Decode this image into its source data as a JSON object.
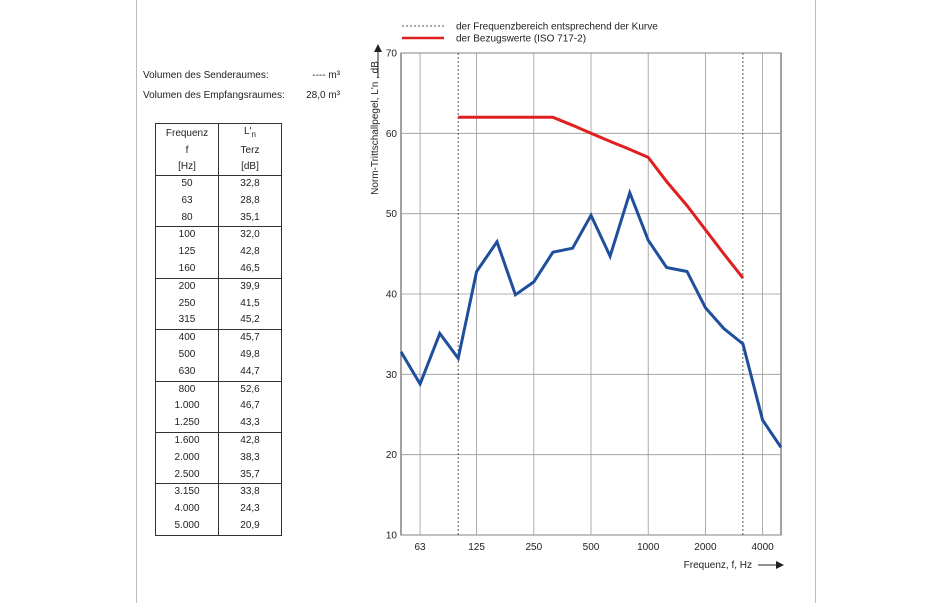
{
  "volumes": [
    {
      "label": "Volumen des Senderaumes:",
      "value": "---- m³"
    },
    {
      "label": "Volumen des Empfangsraumes:",
      "value": "28,0  m³"
    }
  ],
  "table": {
    "header_col1": [
      "Frequenz",
      "f",
      "[Hz]"
    ],
    "header_col2": [
      "L'n",
      "Terz",
      "[dB]"
    ],
    "rows": [
      [
        "50",
        "32,8"
      ],
      [
        "63",
        "28,8"
      ],
      [
        "80",
        "35,1"
      ],
      [
        "100",
        "32,0"
      ],
      [
        "125",
        "42,8"
      ],
      [
        "160",
        "46,5"
      ],
      [
        "200",
        "39,9"
      ],
      [
        "250",
        "41,5"
      ],
      [
        "315",
        "45,2"
      ],
      [
        "400",
        "45,7"
      ],
      [
        "500",
        "49,8"
      ],
      [
        "630",
        "44,7"
      ],
      [
        "800",
        "52,6"
      ],
      [
        "1.000",
        "46,7"
      ],
      [
        "1.250",
        "43,3"
      ],
      [
        "1.600",
        "42,8"
      ],
      [
        "2.000",
        "38,3"
      ],
      [
        "2.500",
        "35,7"
      ],
      [
        "3.150",
        "33,8"
      ],
      [
        "4.000",
        "24,3"
      ],
      [
        "5.000",
        "20,9"
      ]
    ]
  },
  "legend": {
    "dotted": "der Frequenzbereich entsprechend der Kurve",
    "red": "der Bezugswerte (ISO 717-2)"
  },
  "colors": {
    "measured": "#1f4e9c",
    "reference": "#e02020",
    "grid": "#999999"
  },
  "chart_data": {
    "type": "line",
    "x_scale": "log",
    "xlabel": "Frequenz, f, Hz",
    "ylabel": "Norm-Trittschallpegel, L'n , dB",
    "ylim": [
      10,
      70
    ],
    "xlim": [
      50,
      5000
    ],
    "x_tick_labels": [
      "63",
      "125",
      "250",
      "500",
      "1000",
      "2000",
      "4000"
    ],
    "x_ticks": [
      63,
      125,
      250,
      500,
      1000,
      2000,
      4000
    ],
    "y_ticks": [
      10,
      20,
      30,
      40,
      50,
      60,
      70
    ],
    "range_bounds": [
      100,
      3150
    ],
    "grid": true,
    "series": [
      {
        "name": "der Bezugswerte (ISO 717-2)",
        "x": [
          100,
          125,
          160,
          200,
          250,
          315,
          400,
          500,
          630,
          800,
          1000,
          1250,
          1600,
          2000,
          2500,
          3150
        ],
        "values": [
          62,
          62,
          62,
          62,
          62,
          62,
          61,
          60,
          59,
          58,
          57,
          54,
          51,
          48,
          45,
          42
        ]
      },
      {
        "name": "L'n",
        "x": [
          50,
          63,
          80,
          100,
          125,
          160,
          200,
          250,
          315,
          400,
          500,
          630,
          800,
          1000,
          1250,
          1600,
          2000,
          2500,
          3150,
          4000,
          5000
        ],
        "values": [
          32.8,
          28.8,
          35.1,
          32.0,
          42.8,
          46.5,
          39.9,
          41.5,
          45.2,
          45.7,
          49.8,
          44.7,
          52.6,
          46.7,
          43.3,
          42.8,
          38.3,
          35.7,
          33.8,
          24.3,
          20.9
        ]
      }
    ]
  }
}
